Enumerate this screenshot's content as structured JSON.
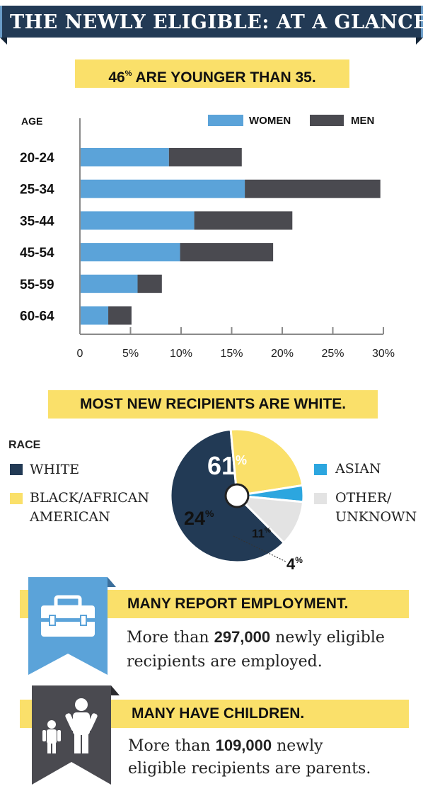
{
  "header": {
    "title": "THE NEWLY ELIGIBLE: AT A GLANCE"
  },
  "age_section": {
    "banner_number": "46",
    "banner_percent": "%",
    "banner_text": " ARE YOUNGER THAN 35."
  },
  "race_section": {
    "banner": "MOST NEW RECIPIENTS ARE WHITE.",
    "legend_title": "RACE",
    "legend": {
      "white": "WHITE",
      "black_line1": "BLACK/AFRICAN",
      "black_line2": "AMERICAN",
      "asian": "ASIAN",
      "other_line1": "OTHER/",
      "other_line2": "UNKNOWN"
    }
  },
  "employment": {
    "heading": "MANY REPORT EMPLOYMENT.",
    "line1_pre": "More than ",
    "line1_num": "297,000",
    "line1_post": " newly eligible",
    "line2": "recipients are employed.",
    "icon": "briefcase-icon"
  },
  "children": {
    "heading": "MANY HAVE CHILDREN.",
    "line1_pre": "More than ",
    "line1_num": "109,000",
    "line1_post": " newly",
    "line2": "eligible recipients are parents.",
    "icon": "parent-child-icon"
  },
  "colors": {
    "women": "#5ba3d9",
    "men": "#4a4a50",
    "white": "#223a55",
    "black": "#fae06a",
    "asian": "#2ca6df",
    "other": "#e3e3e3",
    "banner": "#fae06a",
    "header": "#223a55",
    "ribbon_blue": "#5ba3d9",
    "ribbon_gray": "#4a4a50"
  },
  "chart_data": [
    {
      "type": "bar",
      "orientation": "horizontal",
      "stacked": true,
      "ylabel": "AGE",
      "categories": [
        "20-24",
        "25-34",
        "35-44",
        "45-54",
        "55-59",
        "60-64"
      ],
      "series": [
        {
          "name": "WOMEN",
          "values": [
            8.8,
            16.3,
            11.3,
            9.9,
            5.7,
            2.8
          ]
        },
        {
          "name": "MEN",
          "values": [
            7.2,
            13.4,
            9.7,
            9.2,
            2.4,
            2.3
          ]
        }
      ],
      "xticks": [
        "0",
        "5%",
        "10%",
        "15%",
        "20%",
        "25%",
        "30%"
      ],
      "xlim": [
        0,
        30
      ],
      "legend_position": "top-right",
      "grid": false
    },
    {
      "type": "pie",
      "title": "RACE",
      "labels": [
        "WHITE",
        "BLACK/AFRICAN AMERICAN",
        "ASIAN",
        "OTHER/UNKNOWN"
      ],
      "values": [
        61,
        24,
        4,
        11
      ],
      "value_labels": [
        "61",
        "24",
        "4",
        "11"
      ],
      "percent_sign": "%"
    }
  ]
}
